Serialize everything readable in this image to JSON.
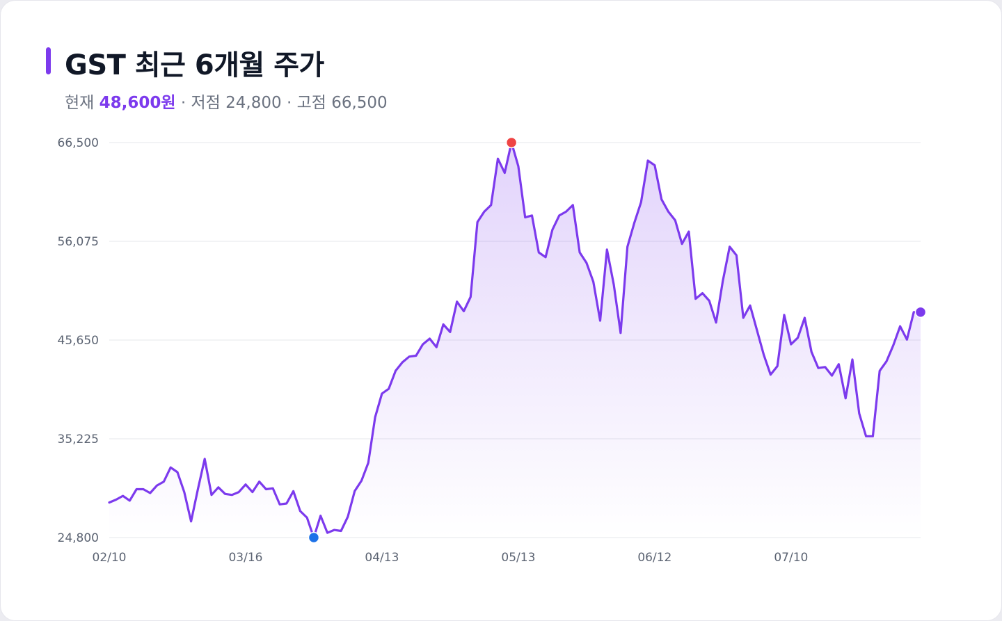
{
  "header": {
    "title": "GST 최근 6개월 주가",
    "current_label": "현재",
    "current_value": "48,600원",
    "sep1": "·",
    "low_label": "저점",
    "low_value": "24,800",
    "sep2": "·",
    "high_label": "고점",
    "high_value": "66,500"
  },
  "colors": {
    "line": "#7c3aed",
    "high_marker": "#ef4444",
    "low_marker": "#1d72e8",
    "last_marker": "#7c3aed",
    "grid": "#e5e7eb"
  },
  "chart_data": {
    "type": "area",
    "title": "GST 최근 6개월 주가",
    "xlabel": "",
    "ylabel": "",
    "ylim": [
      24800,
      66500
    ],
    "yticks": [
      24800,
      35225,
      45650,
      56075,
      66500
    ],
    "ytick_labels": [
      "24,800",
      "35,225",
      "45,650",
      "56,075",
      "66,500"
    ],
    "xticks": [
      0,
      20,
      40,
      60,
      80,
      100
    ],
    "xtick_labels": [
      "02/10",
      "03/16",
      "04/13",
      "05/13",
      "06/12",
      "07/10"
    ],
    "grid": true,
    "legend": "none",
    "x": [
      0,
      1,
      2,
      3,
      4,
      5,
      6,
      7,
      8,
      9,
      10,
      11,
      12,
      13,
      14,
      15,
      16,
      17,
      18,
      19,
      20,
      21,
      22,
      23,
      24,
      25,
      26,
      27,
      28,
      29,
      30,
      31,
      32,
      33,
      34,
      35,
      36,
      37,
      38,
      39,
      40,
      41,
      42,
      43,
      44,
      45,
      46,
      47,
      48,
      49,
      50,
      51,
      52,
      53,
      54,
      55,
      56,
      57,
      58,
      59,
      60,
      61,
      62,
      63,
      64,
      65,
      66,
      67,
      68,
      69,
      70,
      71,
      72,
      73,
      74,
      75,
      76,
      77,
      78,
      79,
      80,
      81,
      82,
      83,
      84,
      85,
      86,
      87,
      88,
      89,
      90,
      91,
      92,
      93,
      94,
      95,
      96,
      97,
      98,
      99,
      100,
      101,
      102,
      103,
      104,
      105,
      106,
      107,
      108,
      109,
      110,
      111,
      112,
      113,
      114,
      115,
      116,
      117,
      118,
      119
    ],
    "values": [
      28500,
      28800,
      29200,
      28700,
      29900,
      29900,
      29500,
      30300,
      30700,
      32200,
      31700,
      29600,
      26500,
      29900,
      33100,
      29300,
      30100,
      29400,
      29300,
      29600,
      30400,
      29600,
      30700,
      29900,
      30000,
      28300,
      28400,
      29700,
      27600,
      26900,
      24800,
      27100,
      25300,
      25600,
      25500,
      27000,
      29700,
      30800,
      32700,
      37500,
      40000,
      40500,
      42400,
      43300,
      43900,
      44000,
      45200,
      45800,
      44900,
      47300,
      46500,
      49700,
      48700,
      50200,
      58100,
      59200,
      59900,
      64800,
      63300,
      66500,
      64000,
      58600,
      58800,
      54900,
      54400,
      57300,
      58800,
      59200,
      59900,
      54900,
      53800,
      51800,
      47700,
      55200,
      51500,
      46400,
      55500,
      58000,
      60200,
      64600,
      64100,
      60500,
      59200,
      58300,
      55800,
      57100,
      50000,
      50600,
      49800,
      47500,
      51900,
      55500,
      54600,
      48000,
      49300,
      46700,
      44100,
      42000,
      42900,
      48300,
      45200,
      45900,
      48000,
      44400,
      42700,
      42800,
      41900,
      43100,
      39500,
      43600,
      37900,
      35500,
      35500,
      42400,
      43400,
      45100,
      47100,
      45700,
      48600,
      48600
    ]
  }
}
